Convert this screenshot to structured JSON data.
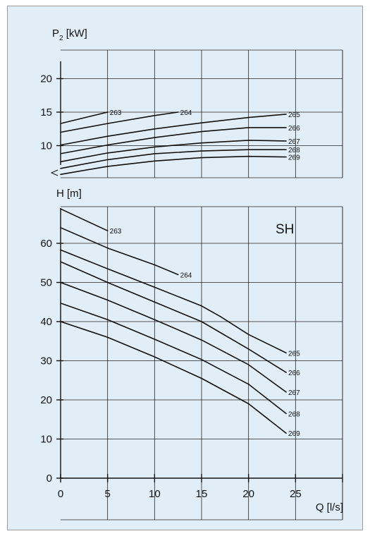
{
  "chart_data": [
    {
      "id": "power",
      "type": "line",
      "ylabel_main": "P",
      "ylabel_sub": "2",
      "ylabel_unit": " [kW]",
      "xlim": [
        0,
        30
      ],
      "ylim": [
        5,
        25
      ],
      "yticks": [
        10,
        15,
        20
      ],
      "grid": true,
      "series": [
        {
          "name": "263",
          "x": [
            0,
            5
          ],
          "y": [
            13.3,
            15.0
          ]
        },
        {
          "name": "264",
          "x": [
            0,
            5,
            10,
            12.5
          ],
          "y": [
            12.0,
            13.3,
            14.5,
            15.0
          ]
        },
        {
          "name": "265",
          "x": [
            0,
            5,
            10,
            15,
            20,
            24
          ],
          "y": [
            10.1,
            11.4,
            12.5,
            13.4,
            14.2,
            14.7
          ]
        },
        {
          "name": "266",
          "x": [
            0,
            5,
            10,
            15,
            20,
            24
          ],
          "y": [
            8.8,
            10.1,
            11.2,
            12.1,
            12.7,
            12.7
          ]
        },
        {
          "name": "267",
          "x": [
            0,
            5,
            10,
            15,
            20,
            24
          ],
          "y": [
            7.6,
            8.9,
            9.8,
            10.4,
            10.8,
            10.7
          ]
        },
        {
          "name": "268",
          "x": [
            0,
            5,
            10,
            15,
            20,
            24
          ],
          "y": [
            6.6,
            7.9,
            8.8,
            9.2,
            9.4,
            9.4
          ]
        },
        {
          "name": "269",
          "x": [
            0,
            5,
            10,
            15,
            20,
            24
          ],
          "y": [
            5.7,
            6.9,
            7.7,
            8.2,
            8.4,
            8.3
          ]
        }
      ]
    },
    {
      "id": "head",
      "type": "line",
      "ylabel": "H [m]",
      "xlabel": "Q [l/s]",
      "panel_label": "SH",
      "xlim": [
        0,
        30
      ],
      "ylim": [
        0,
        70
      ],
      "xticks": [
        0,
        5,
        10,
        15,
        20,
        25
      ],
      "yticks": [
        0,
        10,
        20,
        30,
        40,
        50,
        60
      ],
      "grid": true,
      "series": [
        {
          "name": "263",
          "x": [
            0,
            2.5,
            5
          ],
          "y": [
            68.8,
            66.0,
            63.2
          ]
        },
        {
          "name": "264",
          "x": [
            0,
            5,
            10,
            12.5
          ],
          "y": [
            64.0,
            58.8,
            54.5,
            52.0
          ]
        },
        {
          "name": "265",
          "x": [
            0,
            5,
            10,
            15,
            17,
            20,
            24
          ],
          "y": [
            58.3,
            53.5,
            48.8,
            44.0,
            41.3,
            36.7,
            32.0
          ]
        },
        {
          "name": "266",
          "x": [
            0,
            5,
            10,
            15,
            20,
            24
          ],
          "y": [
            55.3,
            50.0,
            45.0,
            40.0,
            33.0,
            27.0
          ]
        },
        {
          "name": "267",
          "x": [
            0,
            5,
            10,
            15,
            20,
            24
          ],
          "y": [
            50.0,
            45.5,
            40.5,
            35.3,
            29.0,
            22.0
          ]
        },
        {
          "name": "268",
          "x": [
            0,
            5,
            10,
            15,
            20,
            24
          ],
          "y": [
            44.7,
            40.5,
            35.5,
            30.3,
            24.0,
            16.5
          ]
        },
        {
          "name": "269",
          "x": [
            0,
            5,
            10,
            15,
            20,
            24
          ],
          "y": [
            40.0,
            36.0,
            31.0,
            25.5,
            19.0,
            11.5
          ]
        }
      ]
    }
  ]
}
